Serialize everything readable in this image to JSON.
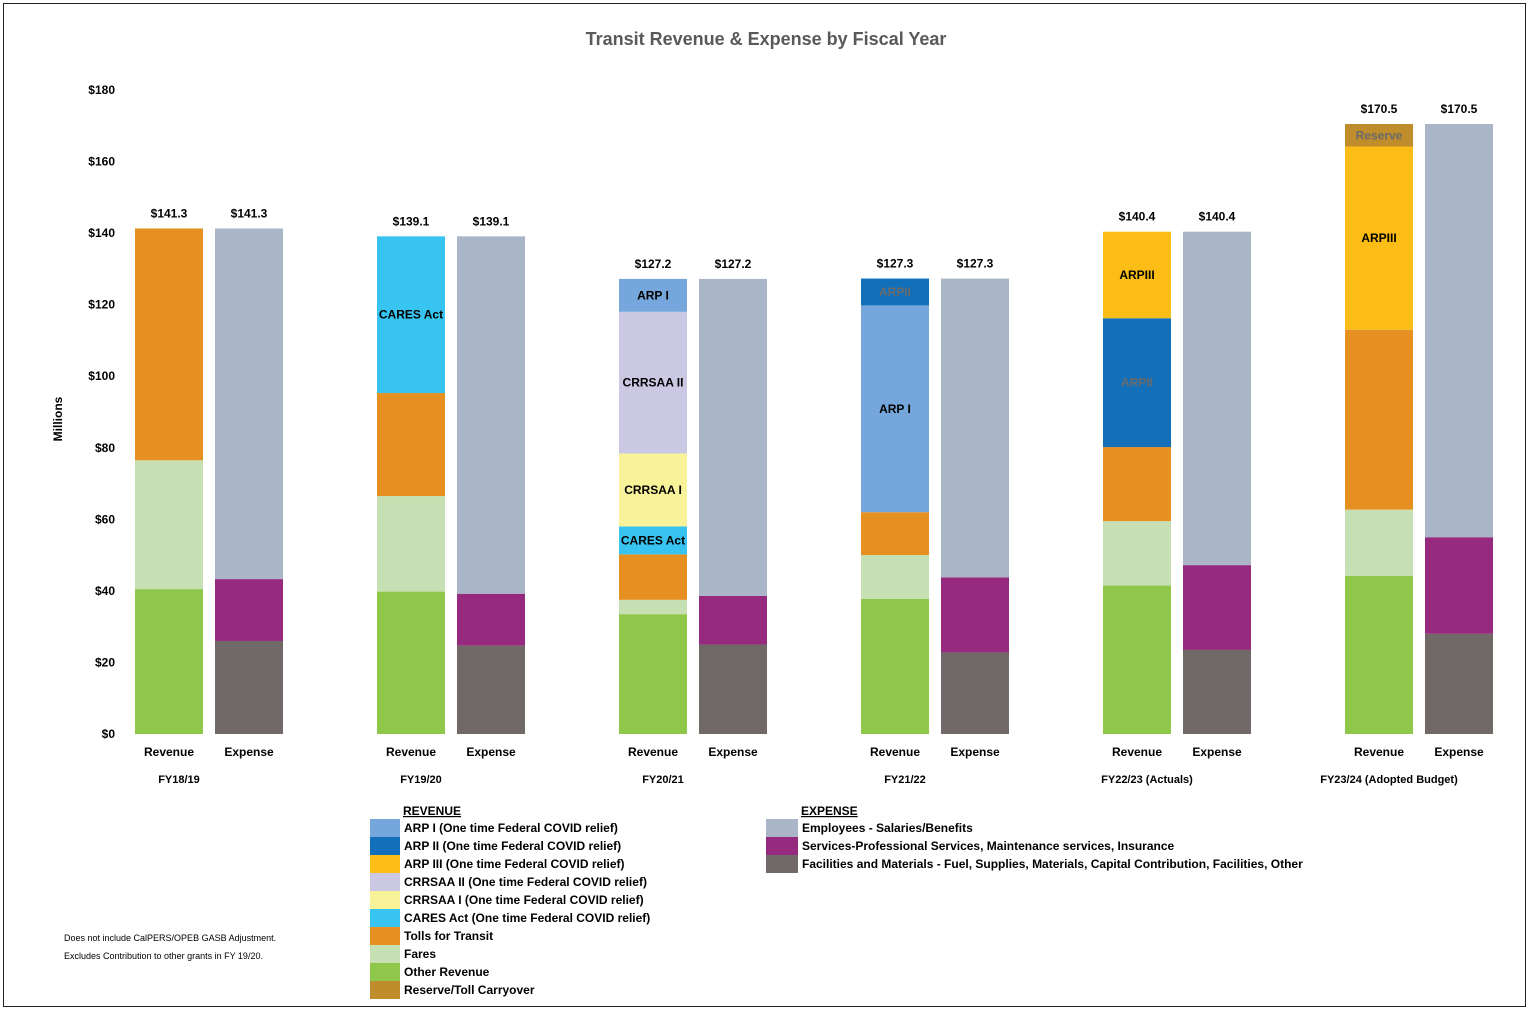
{
  "chart_data": {
    "type": "bar",
    "stacked": true,
    "title": "Transit Revenue & Expense by Fiscal Year",
    "ylabel": "Millions",
    "ylim": [
      0,
      180
    ],
    "yticks": [
      {
        "v": 0,
        "label": "$0"
      },
      {
        "v": 20,
        "label": "$20"
      },
      {
        "v": 40,
        "label": "$40"
      },
      {
        "v": 60,
        "label": "$60"
      },
      {
        "v": 80,
        "label": "$80"
      },
      {
        "v": 100,
        "label": "$100"
      },
      {
        "v": 120,
        "label": "$120"
      },
      {
        "v": 140,
        "label": "$140"
      },
      {
        "v": 160,
        "label": "$160"
      },
      {
        "v": 180,
        "label": "$180"
      }
    ],
    "grid": false,
    "legend_position": "bottom",
    "series": {
      "arp1": {
        "name": "ARP I (One time Federal COVID relief)",
        "color": "#75a7dc",
        "group": "revenue"
      },
      "arp2": {
        "name": "ARP II (One time Federal COVID relief)",
        "color": "#1270ba",
        "group": "revenue"
      },
      "arp3": {
        "name": "ARP III (One time Federal COVID relief)",
        "color": "#fbbd16",
        "group": "revenue"
      },
      "crrsaa2": {
        "name": "CRRSAA II (One time Federal COVID relief)",
        "color": "#cbc8e3",
        "group": "revenue"
      },
      "crrsaa1": {
        "name": "CRRSAA I (One time Federal COVID relief)",
        "color": "#f8f298",
        "group": "revenue"
      },
      "cares": {
        "name": "CARES Act (One time Federal COVID relief)",
        "color": "#37c4f1",
        "group": "revenue"
      },
      "tolls": {
        "name": "Tolls for Transit",
        "color": "#e79022",
        "group": "revenue"
      },
      "fares": {
        "name": "Fares",
        "color": "#c6e0b4",
        "group": "revenue"
      },
      "other": {
        "name": "Other Revenue",
        "color": "#8fc74a",
        "group": "revenue"
      },
      "reserve": {
        "name": "Reserve/Toll Carryover",
        "color": "#bf8d2b",
        "group": "revenue"
      },
      "employees": {
        "name": "Employees - Salaries/Benefits",
        "color": "#abb5c8",
        "group": "expense"
      },
      "services": {
        "name": "Services-Professional Services, Maintenance services, Insurance",
        "color": "#952a7e",
        "group": "expense"
      },
      "facilities": {
        "name": "Facilities and Materials - Fuel, Supplies, Materials, Capital Contribution, Facilities, Other",
        "color": "#706967",
        "group": "expense"
      }
    },
    "groups": [
      {
        "fy": "FY18/19",
        "bars": [
          {
            "label": "Revenue",
            "total": "$141.3",
            "segments": [
              {
                "s": "other",
                "v": 40.5
              },
              {
                "s": "fares",
                "v": 36.0
              },
              {
                "s": "tolls",
                "v": 64.8
              }
            ]
          },
          {
            "label": "Expense",
            "total": "$141.3",
            "segments": [
              {
                "s": "facilities",
                "v": 26.0
              },
              {
                "s": "services",
                "v": 17.3
              },
              {
                "s": "employees",
                "v": 98.0
              }
            ]
          }
        ]
      },
      {
        "fy": "FY19/20",
        "bars": [
          {
            "label": "Revenue",
            "total": "$139.1",
            "segments": [
              {
                "s": "other",
                "v": 39.8
              },
              {
                "s": "fares",
                "v": 26.7
              },
              {
                "s": "tolls",
                "v": 28.8
              },
              {
                "s": "cares",
                "v": 43.8,
                "text": "CARES Act"
              }
            ]
          },
          {
            "label": "Expense",
            "total": "$139.1",
            "segments": [
              {
                "s": "facilities",
                "v": 24.7
              },
              {
                "s": "services",
                "v": 14.5
              },
              {
                "s": "employees",
                "v": 99.9
              }
            ]
          }
        ]
      },
      {
        "fy": "FY20/21",
        "bars": [
          {
            "label": "Revenue",
            "total": "$127.2",
            "segments": [
              {
                "s": "other",
                "v": 33.5
              },
              {
                "s": "fares",
                "v": 4.0
              },
              {
                "s": "tolls",
                "v": 12.7
              },
              {
                "s": "cares",
                "v": 7.8,
                "text": "CARES Act"
              },
              {
                "s": "crrsaa1",
                "v": 20.4,
                "text": "CRRSAA I"
              },
              {
                "s": "crrsaa2",
                "v": 39.6,
                "text": "CRRSAA II"
              },
              {
                "s": "arp1",
                "v": 9.2,
                "text": "ARP I"
              }
            ]
          },
          {
            "label": "Expense",
            "total": "$127.2",
            "segments": [
              {
                "s": "facilities",
                "v": 25.0
              },
              {
                "s": "services",
                "v": 13.6
              },
              {
                "s": "employees",
                "v": 88.6
              }
            ]
          }
        ]
      },
      {
        "fy": "FY21/22",
        "bars": [
          {
            "label": "Revenue",
            "total": "$127.3",
            "segments": [
              {
                "s": "other",
                "v": 37.8
              },
              {
                "s": "fares",
                "v": 12.2
              },
              {
                "s": "tolls",
                "v": 12.0
              },
              {
                "s": "arp1",
                "v": 57.8,
                "text": "ARP I"
              },
              {
                "s": "arp2",
                "v": 7.5,
                "text": "ARPII",
                "textColor": "#6a6a6a"
              }
            ]
          },
          {
            "label": "Expense",
            "total": "$127.3",
            "segments": [
              {
                "s": "facilities",
                "v": 22.8
              },
              {
                "s": "services",
                "v": 21.0
              },
              {
                "s": "employees",
                "v": 83.5
              }
            ]
          }
        ]
      },
      {
        "fy": "FY22/23 (Actuals)",
        "bars": [
          {
            "label": "Revenue",
            "total": "$140.4",
            "segments": [
              {
                "s": "other",
                "v": 41.5
              },
              {
                "s": "fares",
                "v": 18.0
              },
              {
                "s": "tolls",
                "v": 20.7
              },
              {
                "s": "arp2",
                "v": 36.0,
                "text": "ARPII",
                "textColor": "#6a6a6a"
              },
              {
                "s": "arp3",
                "v": 24.2,
                "text": "ARPIII"
              }
            ]
          },
          {
            "label": "Expense",
            "total": "$140.4",
            "segments": [
              {
                "s": "facilities",
                "v": 23.5
              },
              {
                "s": "services",
                "v": 23.7
              },
              {
                "s": "employees",
                "v": 93.2
              }
            ]
          }
        ]
      },
      {
        "fy": "FY23/24 (Adopted Budget)",
        "bars": [
          {
            "label": "Revenue",
            "total": "$170.5",
            "segments": [
              {
                "s": "other",
                "v": 44.2
              },
              {
                "s": "fares",
                "v": 18.5
              },
              {
                "s": "tolls",
                "v": 50.3
              },
              {
                "s": "arp3",
                "v": 51.2,
                "text": "ARPIII"
              },
              {
                "s": "reserve",
                "v": 6.3,
                "text": "Reserve",
                "textColor": "#6a6a6a"
              }
            ]
          },
          {
            "label": "Expense",
            "total": "$170.5",
            "segments": [
              {
                "s": "facilities",
                "v": 28.0
              },
              {
                "s": "services",
                "v": 27.0
              },
              {
                "s": "employees",
                "v": 115.5
              }
            ]
          }
        ]
      }
    ],
    "legend": {
      "revenue_header": "REVENUE",
      "revenue_items": [
        "arp1",
        "arp2",
        "arp3",
        "crrsaa2",
        "crrsaa1",
        "cares",
        "tolls",
        "fares",
        "other",
        "reserve"
      ],
      "expense_header": "EXPENSE",
      "expense_items": [
        "employees",
        "services",
        "facilities"
      ]
    }
  },
  "notes": [
    "Does not include CalPERS/OPEB GASB Adjustment.",
    "Excludes Contribution to other grants in FY 19/20."
  ]
}
